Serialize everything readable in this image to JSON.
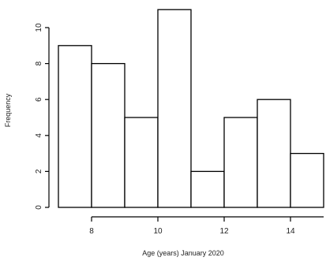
{
  "chart_data": {
    "type": "bar",
    "subtype": "histogram",
    "title": "",
    "xlabel": "Age (years) January 2020",
    "ylabel": "Frequency",
    "bins": [
      {
        "start": 7,
        "end": 8,
        "count": 9
      },
      {
        "start": 8,
        "end": 9,
        "count": 8
      },
      {
        "start": 9,
        "end": 10,
        "count": 5
      },
      {
        "start": 10,
        "end": 11,
        "count": 11
      },
      {
        "start": 11,
        "end": 12,
        "count": 2
      },
      {
        "start": 12,
        "end": 13,
        "count": 5
      },
      {
        "start": 13,
        "end": 14,
        "count": 6
      },
      {
        "start": 14,
        "end": 15,
        "count": 3
      }
    ],
    "xticks": [
      8,
      10,
      12,
      14
    ],
    "yticks": [
      0,
      2,
      4,
      6,
      8,
      10
    ],
    "xlim": [
      7,
      15
    ],
    "ylim": [
      0,
      11
    ],
    "grid": false,
    "legend": "none"
  }
}
